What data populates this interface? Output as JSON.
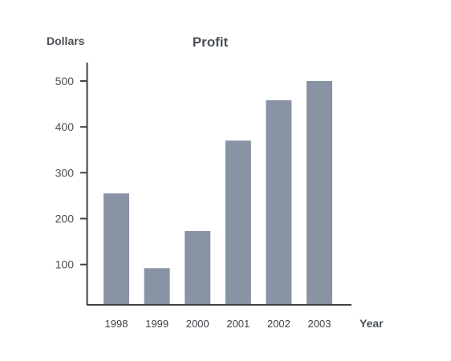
{
  "chart_data": {
    "type": "bar",
    "title": "Profit",
    "xlabel": "Year",
    "ylabel": "Dollars",
    "categories": [
      "1998",
      "1999",
      "2000",
      "2001",
      "2002",
      "2003"
    ],
    "values": [
      255,
      92,
      173,
      370,
      458,
      500
    ],
    "ylim": [
      12,
      500
    ],
    "yticks": [
      100,
      200,
      300,
      400,
      500
    ],
    "ytick_labels": [
      "100",
      "200",
      "300",
      "400",
      "500"
    ],
    "grid": false,
    "legend": "none",
    "colors": {
      "bar": "#8893a3",
      "axis": "#3d4247",
      "text": "#4a4f55"
    }
  }
}
